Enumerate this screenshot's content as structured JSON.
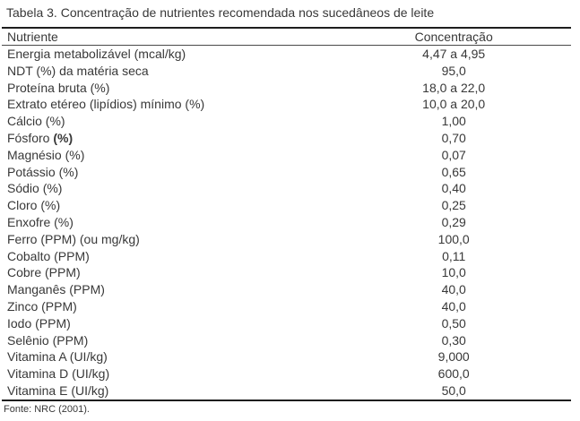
{
  "title": "Tabela 3. Concentração de nutrientes recomendada nos sucedâneos de leite",
  "table": {
    "columns": [
      "Nutriente",
      "Concentração"
    ],
    "rows": [
      {
        "nutrient": "Energia metabolizável (mcal/kg)",
        "value": "4,47 a 4,95"
      },
      {
        "nutrient": "NDT (%) da matéria seca",
        "value": "95,0"
      },
      {
        "nutrient": "Proteína bruta (%)",
        "value": "18,0 a 22,0"
      },
      {
        "nutrient": "Extrato etéreo (lipídios) mínimo (%)",
        "value": "10,0 a 20,0"
      },
      {
        "nutrient": "Cálcio (%)",
        "value": "1,00"
      },
      {
        "nutrient": "Fósforo",
        "bold_suffix": "(%)",
        "value": "0,70"
      },
      {
        "nutrient": "Magnésio (%)",
        "value": "0,07"
      },
      {
        "nutrient": "Potássio (%)",
        "value": "0,65"
      },
      {
        "nutrient": "Sódio (%)",
        "value": "0,40"
      },
      {
        "nutrient": "Cloro (%)",
        "value": "0,25"
      },
      {
        "nutrient": "Enxofre (%)",
        "value": "0,29"
      },
      {
        "nutrient": "Ferro (PPM) (ou mg/kg)",
        "value": "100,0"
      },
      {
        "nutrient": "Cobalto (PPM)",
        "value": "0,11"
      },
      {
        "nutrient": "Cobre (PPM)",
        "value": "10,0"
      },
      {
        "nutrient": "Manganês (PPM)",
        "value": "40,0"
      },
      {
        "nutrient": "Zinco (PPM)",
        "value": "40,0"
      },
      {
        "nutrient": "Iodo (PPM)",
        "value": "0,50"
      },
      {
        "nutrient": "Selênio (PPM)",
        "value": "0,30"
      },
      {
        "nutrient": "Vitamina A (UI/kg)",
        "value": "9,000"
      },
      {
        "nutrient": "Vitamina D (UI/kg)",
        "value": "600,0"
      },
      {
        "nutrient": "Vitamina E (UI/kg)",
        "value": "50,0"
      }
    ]
  },
  "footer": {
    "source": "Fonte: NRC (2001)."
  },
  "colors": {
    "text": "#383838",
    "rule": "#1e1e1e",
    "background": "#ffffff"
  }
}
